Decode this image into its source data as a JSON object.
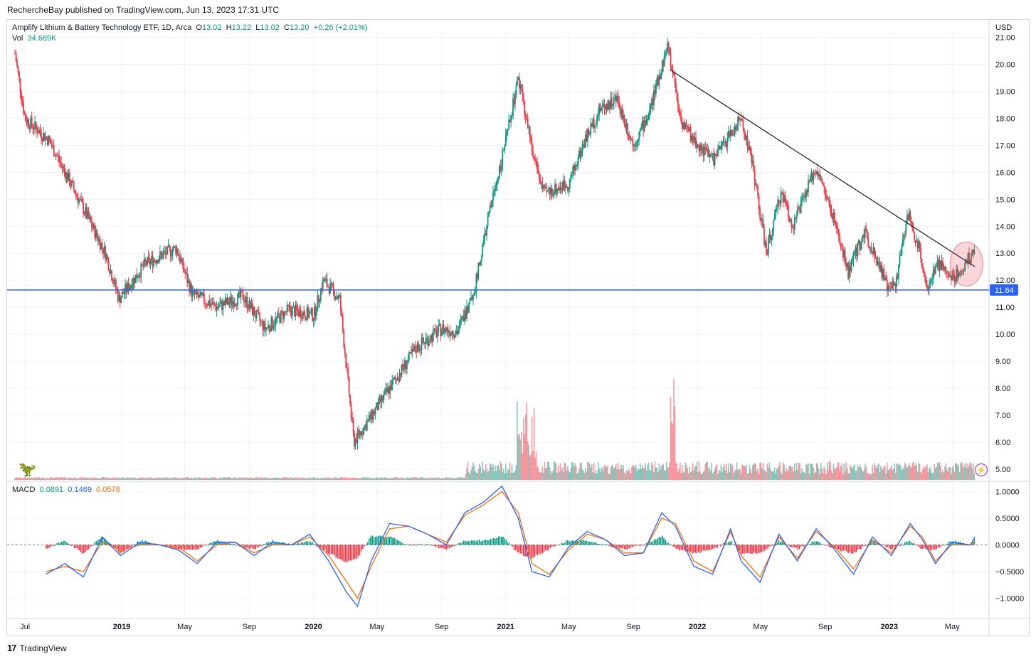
{
  "publisher": "RechercheBay published on TradingView.com, Jun 13, 2023 17:31 UTC",
  "footer": {
    "brand": "TradingView"
  },
  "legend": {
    "title": "Amplify Lithium & Battery Technology ETF, 1D, Arca",
    "o_label": "O",
    "o": "13.02",
    "h_label": "H",
    "h": "13.22",
    "l_label": "L",
    "l": "13.02",
    "c_label": "C",
    "c": "13.20",
    "change": "+0.26 (+2.01%)",
    "vol_label": "Vol",
    "vol": "34.689K"
  },
  "macd_legend": {
    "label": "MACD",
    "hist": "0.0891",
    "macd": "0.1469",
    "signal": "0.0578"
  },
  "colors": {
    "up": "#089981",
    "down": "#f23645",
    "macd": "#2962ff",
    "signal": "#ff6d00",
    "hline": "#2962ff",
    "highlight": "#f23645"
  },
  "chart_data": [
    {
      "type": "candlestick",
      "title": "Amplify Lithium & Battery Technology ETF, 1D, Arca",
      "currency": "USD",
      "x_ticks": [
        "Jul",
        "2019",
        "May",
        "Sep",
        "2020",
        "May",
        "Sep",
        "2021",
        "May",
        "Sep",
        "2022",
        "May",
        "Sep",
        "2023",
        "May"
      ],
      "y_ticks": [
        "5.00",
        "6.00",
        "7.00",
        "8.00",
        "9.00",
        "10.00",
        "11.00",
        "12.00",
        "13.00",
        "14.00",
        "15.00",
        "16.00",
        "17.00",
        "18.00",
        "19.00",
        "20.00",
        "21.00"
      ],
      "ylim": [
        4.6,
        21.2
      ],
      "x": [
        "2018-06-12",
        "2018-07-01",
        "2018-08-15",
        "2018-10-01",
        "2018-12-01",
        "2018-12-27",
        "2019-02-15",
        "2019-04-15",
        "2019-05-15",
        "2019-07-01",
        "2019-08-20",
        "2019-10-01",
        "2019-11-15",
        "2020-01-02",
        "2020-01-20",
        "2020-02-20",
        "2020-03-18",
        "2020-04-15",
        "2020-06-01",
        "2020-07-15",
        "2020-09-01",
        "2020-10-01",
        "2020-11-01",
        "2020-12-01",
        "2021-01-05",
        "2021-01-25",
        "2021-02-25",
        "2021-03-15",
        "2021-05-01",
        "2021-06-01",
        "2021-07-01",
        "2021-08-01",
        "2021-09-01",
        "2021-10-01",
        "2021-11-05",
        "2021-12-01",
        "2022-01-01",
        "2022-02-01",
        "2022-03-01",
        "2022-03-25",
        "2022-04-15",
        "2022-05-12",
        "2022-06-10",
        "2022-07-01",
        "2022-08-15",
        "2022-09-15",
        "2022-10-15",
        "2022-11-15",
        "2022-12-15",
        "2022-12-30",
        "2023-01-15",
        "2023-02-05",
        "2023-03-01",
        "2023-03-15",
        "2023-04-05",
        "2023-05-01",
        "2023-05-20",
        "2023-06-13"
      ],
      "close": [
        20.4,
        18.0,
        17.2,
        15.4,
        13.0,
        11.3,
        12.6,
        13.2,
        11.5,
        11.0,
        11.4,
        10.2,
        10.9,
        10.7,
        12.0,
        11.3,
        6.0,
        6.8,
        8.2,
        9.5,
        10.2,
        10.1,
        11.5,
        14.5,
        17.5,
        19.5,
        16.4,
        15.2,
        15.6,
        17.2,
        18.4,
        18.7,
        17.0,
        18.2,
        20.7,
        17.9,
        17.0,
        16.5,
        17.3,
        18.0,
        16.4,
        13.0,
        15.3,
        14.0,
        16.2,
        14.4,
        12.3,
        13.8,
        12.5,
        11.6,
        12.0,
        14.5,
        13.0,
        11.7,
        12.6,
        12.1,
        12.4,
        13.2
      ],
      "volume_note": "Volume histogram along the bottom of the price pane",
      "annotations": {
        "horizontal_line": 11.64,
        "horizontal_line_label": "11.64",
        "trendline": {
          "from": {
            "x": "2021-11-10",
            "y": 19.8
          },
          "to": {
            "x": "2023-06-13",
            "y": 12.5
          }
        },
        "highlight_circle": {
          "x": "2023-05-28",
          "y": 12.6
        }
      }
    },
    {
      "type": "line",
      "title": "MACD",
      "y_ticks": [
        "1.0000",
        "0.5000",
        "0.0000",
        "−0.5000",
        "−1.0000"
      ],
      "ylim": [
        -1.35,
        1.15
      ],
      "x": [
        "2018-08-10",
        "2018-09-15",
        "2018-10-20",
        "2018-11-25",
        "2018-12-30",
        "2019-02-05",
        "2019-03-15",
        "2019-04-20",
        "2019-05-25",
        "2019-07-01",
        "2019-08-05",
        "2019-09-10",
        "2019-10-15",
        "2019-11-20",
        "2019-12-25",
        "2020-01-30",
        "2020-03-05",
        "2020-03-25",
        "2020-04-20",
        "2020-05-25",
        "2020-06-30",
        "2020-08-05",
        "2020-09-10",
        "2020-10-15",
        "2020-11-20",
        "2020-12-25",
        "2021-01-25",
        "2021-02-20",
        "2021-03-25",
        "2021-04-30",
        "2021-06-05",
        "2021-07-10",
        "2021-08-15",
        "2021-09-20",
        "2021-10-25",
        "2021-11-20",
        "2021-12-25",
        "2022-01-30",
        "2022-03-05",
        "2022-03-25",
        "2022-04-30",
        "2022-06-05",
        "2022-07-10",
        "2022-08-15",
        "2022-09-20",
        "2022-10-25",
        "2022-11-30",
        "2023-01-05",
        "2023-02-10",
        "2023-03-05",
        "2023-03-30",
        "2023-04-30",
        "2023-06-05",
        "2023-06-13"
      ],
      "series": [
        {
          "name": "MACD",
          "values": [
            -0.55,
            -0.35,
            -0.6,
            0.15,
            -0.2,
            0.05,
            0.0,
            -0.1,
            -0.35,
            0.05,
            0.05,
            -0.2,
            0.05,
            0.0,
            0.2,
            -0.3,
            -0.9,
            -1.15,
            -0.3,
            0.4,
            0.35,
            0.2,
            0.0,
            0.6,
            0.8,
            1.1,
            0.5,
            -0.5,
            -0.6,
            -0.05,
            0.25,
            0.1,
            -0.2,
            -0.15,
            0.6,
            0.35,
            -0.4,
            -0.55,
            0.3,
            -0.3,
            -0.7,
            0.2,
            -0.3,
            0.3,
            -0.1,
            -0.55,
            0.15,
            -0.2,
            0.4,
            0.1,
            -0.35,
            0.05,
            0.0,
            0.15
          ]
        },
        {
          "name": "Signal",
          "values": [
            -0.5,
            -0.4,
            -0.5,
            0.05,
            -0.1,
            0.0,
            0.0,
            -0.05,
            -0.3,
            0.0,
            0.05,
            -0.15,
            0.0,
            0.0,
            0.15,
            -0.2,
            -0.7,
            -1.0,
            -0.4,
            0.3,
            0.35,
            0.2,
            0.05,
            0.55,
            0.75,
            1.0,
            0.6,
            -0.35,
            -0.55,
            -0.1,
            0.2,
            0.1,
            -0.15,
            -0.15,
            0.5,
            0.4,
            -0.3,
            -0.5,
            0.25,
            -0.2,
            -0.6,
            0.15,
            -0.25,
            0.25,
            -0.05,
            -0.45,
            0.1,
            -0.15,
            0.35,
            0.15,
            -0.3,
            0.0,
            0.0,
            0.06
          ]
        }
      ]
    }
  ]
}
